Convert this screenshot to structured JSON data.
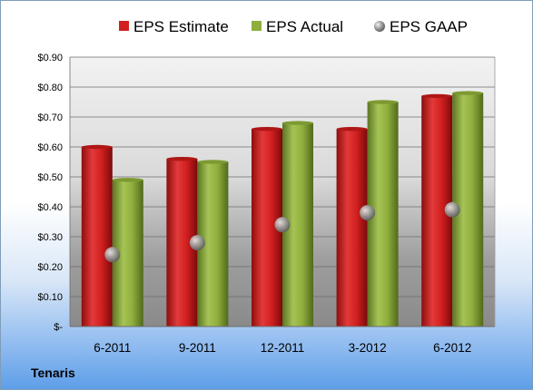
{
  "company": "Tenaris",
  "chart_data": {
    "type": "bar",
    "title": "",
    "xlabel": "",
    "ylabel": "",
    "categories": [
      "6-2011",
      "9-2011",
      "12-2011",
      "3-2012",
      "6-2012"
    ],
    "series": [
      {
        "name": "EPS Estimate",
        "kind": "bar",
        "color": "#d21f1f",
        "values": [
          0.6,
          0.56,
          0.66,
          0.66,
          0.77
        ]
      },
      {
        "name": "EPS Actual",
        "kind": "bar",
        "color": "#8fae3c",
        "values": [
          0.49,
          0.55,
          0.68,
          0.75,
          0.78
        ]
      },
      {
        "name": "EPS GAAP",
        "kind": "marker",
        "color": "#9a9a9a",
        "values": [
          0.24,
          0.28,
          0.34,
          0.38,
          0.39
        ]
      }
    ],
    "ylim": [
      0,
      0.9
    ],
    "yticks": [
      0,
      0.1,
      0.2,
      0.3,
      0.4,
      0.5,
      0.6,
      0.7,
      0.8,
      0.9
    ],
    "ytick_labels": [
      "$-",
      "$0.10",
      "$0.20",
      "$0.30",
      "$0.40",
      "$0.50",
      "$0.60",
      "$0.70",
      "$0.80",
      "$0.90"
    ],
    "grid": true,
    "legend_position": "top"
  }
}
